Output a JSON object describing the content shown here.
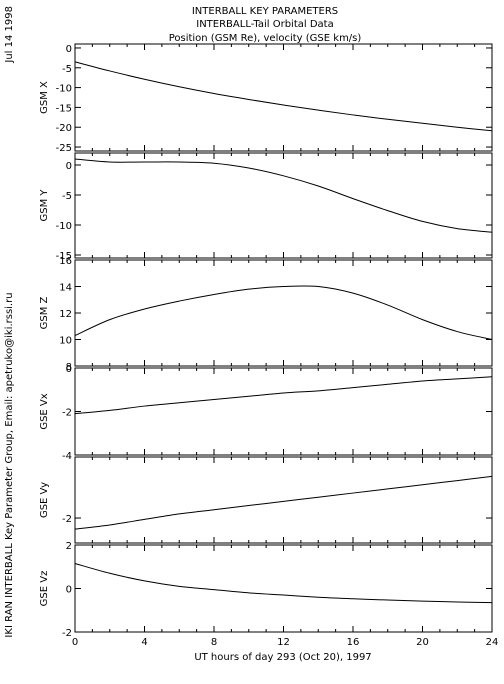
{
  "header": {
    "line1": "INTERBALL KEY PARAMETERS",
    "line2": "INTERBALL-Tail Orbital Data",
    "line3": "Position (GSM Re), velocity (GSE km/s)"
  },
  "side": {
    "date": "Jul 14 1998",
    "credit": "IKI RAN INTERBALL Key Parameter Group, Email: apetruko@iki.rssi.ru"
  },
  "xaxis": {
    "label": "UT hours of day 293 (Oct 20), 1997",
    "ticks": [
      "0",
      "4",
      "8",
      "12",
      "16",
      "20",
      "24"
    ]
  },
  "chart_data": [
    {
      "type": "line",
      "ylabel": "GSM X",
      "x": [
        0,
        2,
        4,
        6,
        8,
        10,
        12,
        14,
        16,
        18,
        20,
        22,
        24
      ],
      "ylim": [
        -26,
        1
      ],
      "yticks": [
        0,
        -5,
        -10,
        -15,
        -20,
        -25
      ],
      "ytick_labels": [
        "0",
        "-5",
        "-10",
        "-15",
        "-20",
        "-25"
      ],
      "series": [
        {
          "values": [
            -3.5,
            -5.8,
            -7.9,
            -9.8,
            -11.5,
            -13.0,
            -14.4,
            -15.7,
            -16.9,
            -18.0,
            -19.0,
            -20.0,
            -20.9
          ]
        }
      ]
    },
    {
      "type": "line",
      "ylabel": "GSM Y",
      "x": [
        0,
        2,
        4,
        6,
        8,
        10,
        12,
        14,
        16,
        18,
        20,
        22,
        24
      ],
      "ylim": [
        -15.5,
        2
      ],
      "yticks": [
        0,
        -5,
        -10,
        -15
      ],
      "ytick_labels": [
        "0",
        "-5",
        "-10",
        "-15"
      ],
      "series": [
        {
          "values": [
            1.0,
            0.5,
            0.5,
            0.5,
            0.3,
            -0.5,
            -1.8,
            -3.5,
            -5.6,
            -7.6,
            -9.4,
            -10.6,
            -11.2
          ]
        }
      ]
    },
    {
      "type": "line",
      "ylabel": "GSM Z",
      "x": [
        0,
        2,
        4,
        6,
        8,
        10,
        12,
        14,
        16,
        18,
        20,
        22,
        24
      ],
      "ylim": [
        8,
        16
      ],
      "yticks": [
        8,
        10,
        12,
        14,
        16
      ],
      "ytick_labels": [
        "8",
        "10",
        "12",
        "14",
        "16"
      ],
      "series": [
        {
          "values": [
            10.3,
            11.5,
            12.3,
            12.9,
            13.4,
            13.8,
            14.0,
            14.0,
            13.5,
            12.6,
            11.5,
            10.6,
            10.0
          ]
        }
      ]
    },
    {
      "type": "line",
      "ylabel": "GSE Vx",
      "x": [
        0,
        2,
        4,
        6,
        8,
        10,
        12,
        14,
        16,
        18,
        20,
        22,
        24
      ],
      "ylim": [
        -4,
        0
      ],
      "yticks": [
        0,
        -2,
        -4
      ],
      "ytick_labels": [
        "0",
        "-2",
        "-4"
      ],
      "series": [
        {
          "values": [
            -2.1,
            -1.95,
            -1.75,
            -1.6,
            -1.45,
            -1.3,
            -1.15,
            -1.05,
            -0.9,
            -0.75,
            -0.6,
            -0.5,
            -0.4
          ]
        }
      ]
    },
    {
      "type": "line",
      "ylabel": "GSE Vy",
      "x": [
        0,
        2,
        4,
        6,
        8,
        10,
        12,
        14,
        16,
        18,
        20,
        22,
        24
      ],
      "ylim": [
        -2.9,
        0.2
      ],
      "yticks": [
        -2
      ],
      "ytick_labels": [
        "-2"
      ],
      "series": [
        {
          "values": [
            -2.4,
            -2.25,
            -2.05,
            -1.85,
            -1.7,
            -1.55,
            -1.4,
            -1.25,
            -1.1,
            -0.95,
            -0.8,
            -0.65,
            -0.5
          ]
        }
      ]
    },
    {
      "type": "line",
      "ylabel": "GSE Vz",
      "x": [
        0,
        2,
        4,
        6,
        8,
        10,
        12,
        14,
        16,
        18,
        20,
        22,
        24
      ],
      "ylim": [
        -2,
        2
      ],
      "yticks": [
        2,
        0,
        -2
      ],
      "ytick_labels": [
        "2",
        "0",
        "-2"
      ],
      "series": [
        {
          "values": [
            1.15,
            0.7,
            0.35,
            0.1,
            -0.05,
            -0.2,
            -0.3,
            -0.4,
            -0.47,
            -0.53,
            -0.58,
            -0.62,
            -0.65
          ]
        }
      ]
    }
  ]
}
